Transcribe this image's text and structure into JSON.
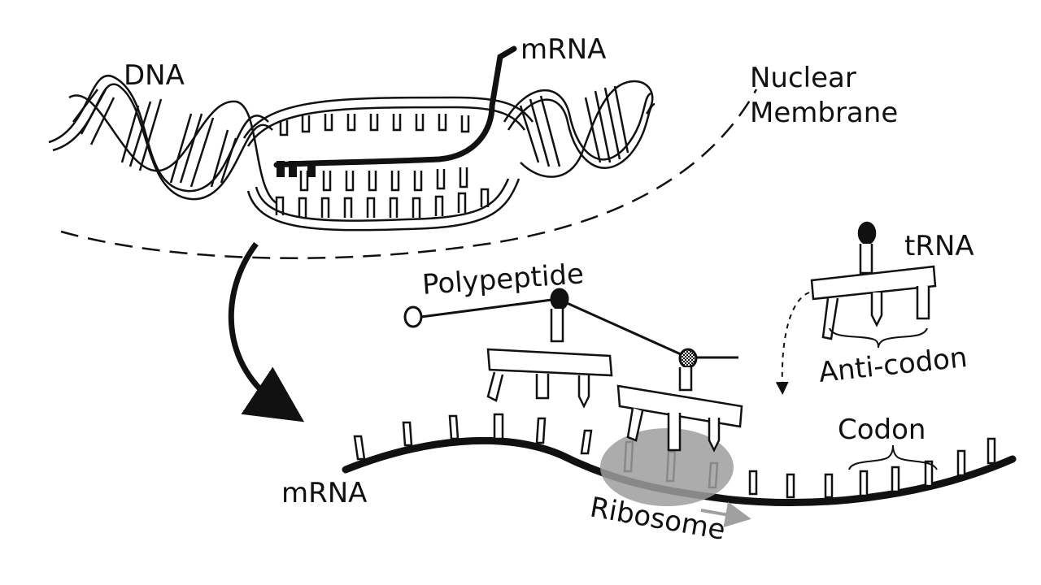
{
  "labels": {
    "dna": "DNA",
    "mrna_top": "mRNA",
    "nuclear_membrane_line1": "Nuclear",
    "nuclear_membrane_line2": "Membrane",
    "polypeptide": "Polypeptide",
    "trna": "tRNA",
    "anti_codon": "Anti-codon",
    "codon": "Codon",
    "mrna_bottom": "mRNA",
    "ribosome": "Ribosome"
  },
  "colors": {
    "ink": "#111111",
    "ribosome_fill": "#9e9e9e",
    "ribosome_arrow": "#a0a0a0"
  },
  "icons": {
    "process_arrow": "curved-arrow-down-right",
    "trna_approach_arrow": "dashed-arrow-down"
  }
}
